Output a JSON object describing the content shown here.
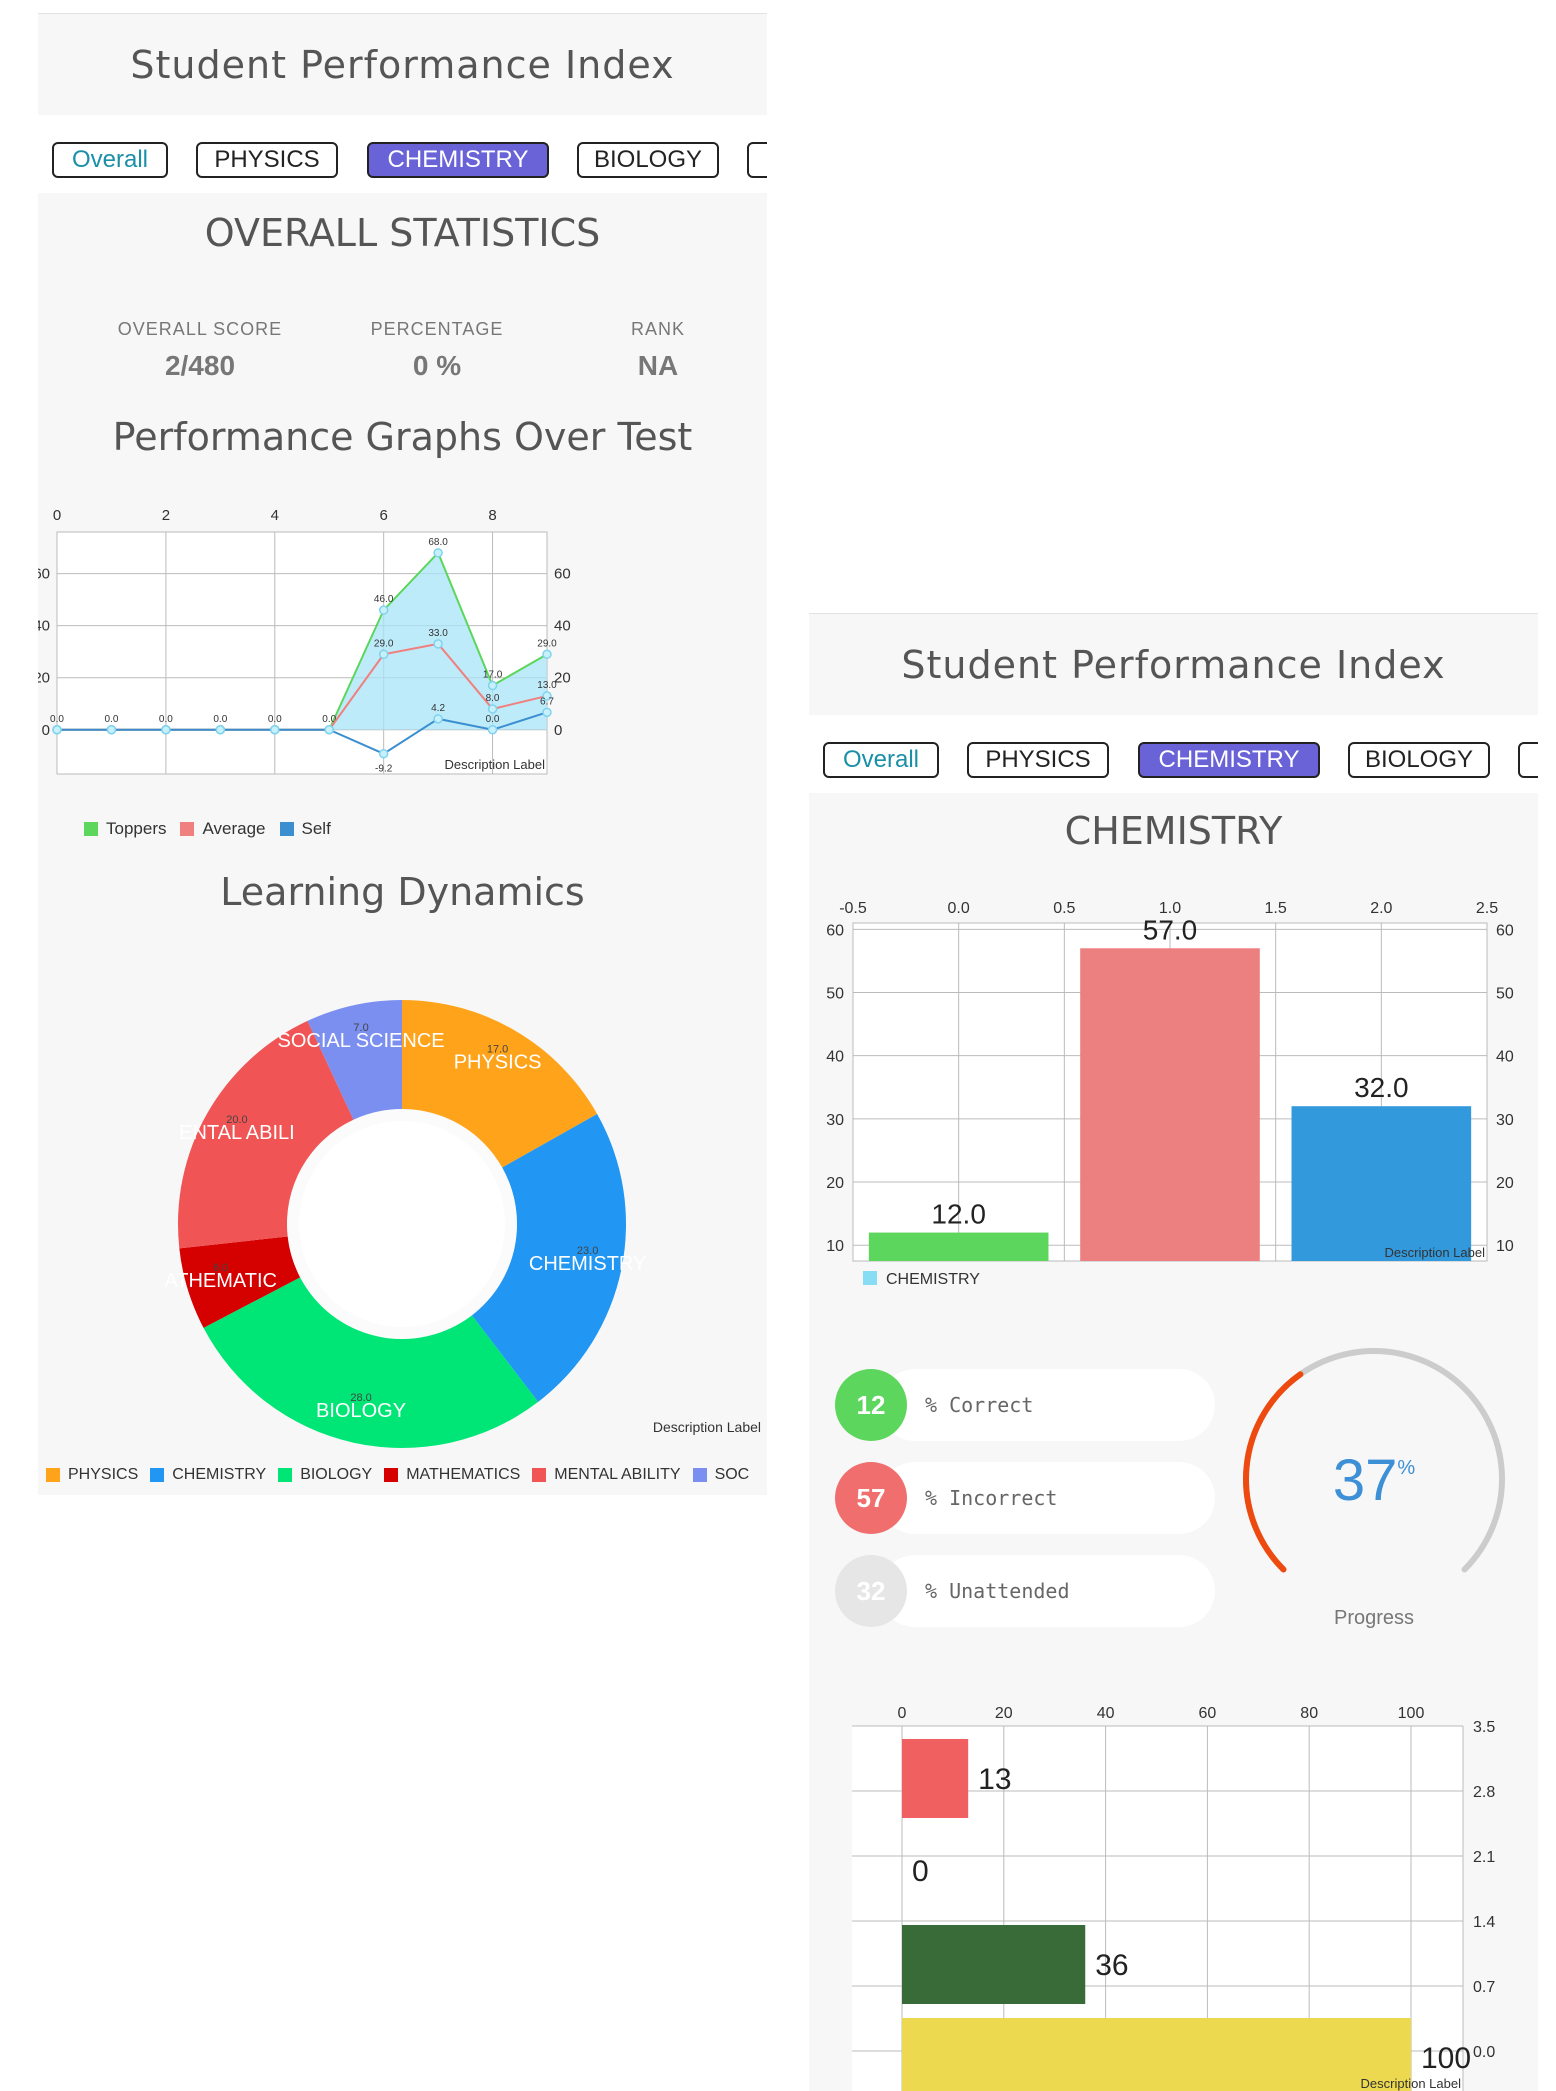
{
  "app": {
    "title": "Student Performance Index",
    "tabs": [
      {
        "label": "Overall"
      },
      {
        "label": "PHYSICS"
      },
      {
        "label": "CHEMISTRY"
      },
      {
        "label": "BIOLOGY"
      }
    ],
    "active_tab": "CHEMISTRY"
  },
  "overall": {
    "section_title": "OVERALL STATISTICS",
    "stats": [
      {
        "label": "OVERALL SCORE",
        "value": "2/480"
      },
      {
        "label": "PERCENTAGE",
        "value": "0 %"
      },
      {
        "label": "RANK",
        "value": "NA"
      }
    ]
  },
  "performance": {
    "title": "Performance Graphs Over Test",
    "description": "Description Label"
  },
  "learning": {
    "title": "Learning Dynamics",
    "description": "Description Label"
  },
  "chemistry": {
    "section_title": "CHEMISTRY",
    "description": "Description Label",
    "rows": [
      {
        "value": "12",
        "label": "% Correct",
        "color": "#5cd65c"
      },
      {
        "value": "57",
        "label": "% Incorrect",
        "color": "#f06e6e"
      },
      {
        "value": "32",
        "label": "% Unattended",
        "color": "#e6e6e6"
      }
    ],
    "gauge": {
      "value": 37,
      "display": "37",
      "unit": "%",
      "label": "Progress"
    }
  },
  "hbar": {
    "description": "Description Label"
  },
  "chart_data": [
    {
      "id": "performance",
      "type": "line",
      "x": [
        0,
        1,
        2,
        3,
        4,
        5,
        6,
        7,
        8,
        9
      ],
      "series": [
        {
          "name": "Toppers",
          "color": "#5cd65c",
          "values": [
            0,
            0,
            0,
            0,
            0,
            0,
            46.0,
            68.0,
            17.0,
            29.0
          ]
        },
        {
          "name": "Average",
          "color": "#f08080",
          "values": [
            0,
            0,
            0,
            0,
            0,
            0,
            29.0,
            33.0,
            8.0,
            13.0
          ]
        },
        {
          "name": "Self",
          "color": "#3b8fd0",
          "values": [
            0,
            0,
            0,
            0,
            0,
            0,
            -9.2,
            4.2,
            0.0,
            6.7
          ]
        }
      ],
      "point_labels": {
        "0": [
          "0.0",
          "0.0",
          "0.0",
          "0.0",
          "0.0",
          "0.0",
          "46.0",
          "68.0",
          "17.0",
          "29.0"
        ],
        "1": [
          "",
          "",
          "",
          "",
          "",
          "",
          "29.0",
          "33.0",
          "8.0",
          "13.0"
        ],
        "2": [
          "",
          "",
          "",
          "",
          "",
          "",
          "-9.2",
          "4.2",
          "0.0",
          "6.7"
        ]
      },
      "x_ticks": [
        "0",
        "2",
        "4",
        "6",
        "8"
      ],
      "y_ticks": [
        "0",
        "20",
        "40",
        "60"
      ],
      "xlim": [
        0,
        9
      ],
      "ylim": [
        -17,
        76
      ],
      "grid": true,
      "legend": "bottom-left"
    },
    {
      "id": "learning",
      "type": "pie",
      "slices": [
        {
          "name": "PHYSICS",
          "value": 17.0,
          "color": "#ffa31a"
        },
        {
          "name": "CHEMISTRY",
          "value": 23.0,
          "color": "#2196f3"
        },
        {
          "name": "BIOLOGY",
          "value": 28.0,
          "color": "#00e676"
        },
        {
          "name": "MATHEMATICS",
          "value": 6.0,
          "color": "#d50000"
        },
        {
          "name": "MENTAL ABILITY",
          "value": 20.0,
          "color": "#f05454"
        },
        {
          "name": "SOCIAL SCIENCE",
          "value": 7.0,
          "color": "#7b8ff0"
        }
      ],
      "slice_labels": [
        "PHYSICS",
        "CHEMISTRY",
        "BIOLOGY",
        "ATHEMATIC",
        "ENTAL ABILI",
        "SOCIAL SCIENCE"
      ],
      "slice_values": [
        "17.0",
        "23.0",
        "28.0",
        "6.0",
        "20.0",
        "7.0"
      ],
      "legend_entries": [
        "PHYSICS",
        "CHEMISTRY",
        "BIOLOGY",
        "MATHEMATICS",
        "MENTAL ABILITY",
        "SOC"
      ],
      "legend": "bottom"
    },
    {
      "id": "chemistry_bar",
      "type": "bar",
      "x": [
        0,
        1,
        2
      ],
      "values": [
        12.0,
        57.0,
        32.0
      ],
      "colors": [
        "#5cd65c",
        "#ec8080",
        "#3399dd"
      ],
      "value_labels": [
        "12.0",
        "57.0",
        "32.0"
      ],
      "x_ticks": [
        "-0.5",
        "0.0",
        "0.5",
        "1.0",
        "1.5",
        "2.0",
        "2.5"
      ],
      "y_ticks": [
        "10",
        "20",
        "30",
        "40",
        "50",
        "60"
      ],
      "xlim": [
        -0.5,
        2.5
      ],
      "ylim": [
        7.5,
        61
      ],
      "legend_entries": [
        "CHEMISTRY"
      ],
      "legend_color": "#88ddf5",
      "grid": true,
      "legend": "bottom-left"
    },
    {
      "id": "hbar",
      "type": "bar",
      "orientation": "horizontal",
      "values": [
        13,
        0,
        36,
        100
      ],
      "colors": [
        "#f06060",
        "#f06060",
        "#386b38",
        "#ecd94f"
      ],
      "value_labels": [
        "13",
        "0",
        "36",
        "100"
      ],
      "x_ticks": [
        "0",
        "20",
        "40",
        "60",
        "80",
        "100"
      ],
      "y_ticks": [
        "3.5",
        "2.8",
        "2.1",
        "1.4",
        "0.7",
        "0.0"
      ],
      "xlim": [
        0,
        110
      ],
      "grid": true
    }
  ]
}
